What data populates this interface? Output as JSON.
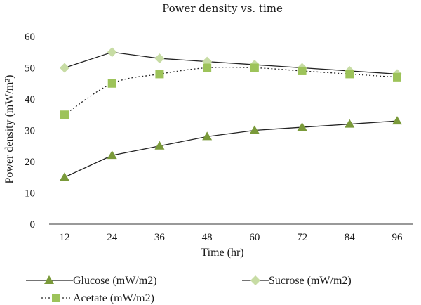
{
  "chart_data": {
    "type": "line",
    "title": "Power density vs. time",
    "xlabel": "Time (hr)",
    "ylabel": "Power density (mW/m²)",
    "x": [
      12,
      24,
      36,
      48,
      60,
      72,
      84,
      96
    ],
    "ylim": [
      0,
      60
    ],
    "yticks": [
      0,
      10,
      20,
      30,
      40,
      50,
      60
    ],
    "grid": false,
    "legend_position": "bottom",
    "series": [
      {
        "name": "Glucose (mW/m2)",
        "marker": "triangle",
        "line": "solid",
        "color": "#7a9a3a",
        "values": [
          15,
          22,
          25,
          28,
          30,
          31,
          32,
          33
        ]
      },
      {
        "name": "Acetate (mW/m2)",
        "marker": "square",
        "line": "dotted",
        "color": "#9dc35a",
        "values": [
          35,
          45,
          48,
          50,
          50,
          49,
          48,
          47
        ]
      },
      {
        "name": "Sucrose (mW/m2)",
        "marker": "diamond",
        "line": "solid",
        "color": "#c7dca4",
        "values": [
          50,
          55,
          53,
          52,
          51,
          50,
          49,
          48
        ]
      }
    ]
  }
}
